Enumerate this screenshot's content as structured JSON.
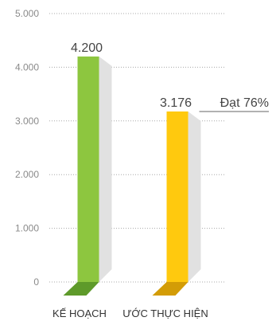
{
  "chart_data": {
    "type": "bar",
    "title": "",
    "xlabel": "",
    "ylabel": "",
    "categories": [
      "KẾ HOẠCH",
      "ƯỚC THỰC HIỆN"
    ],
    "values": [
      4200,
      3176
    ],
    "data_labels": [
      "4.200",
      "3.176"
    ],
    "y_tick_labels": [
      "0",
      "1.000",
      "2.000",
      "3.000",
      "4.000",
      "5.000"
    ],
    "y_ticks": [
      0,
      1000,
      2000,
      3000,
      4000,
      5000
    ],
    "ylim": [
      0,
      5000
    ],
    "grid": true,
    "legend": "none",
    "annotation": {
      "text": "Đạt 76%",
      "series_index": 1
    },
    "colors": {
      "bars": [
        "#8dc63f",
        "#ffc90e"
      ],
      "bar_bases": [
        "#5e9a2a",
        "#d39c06"
      ],
      "shadow": "#e1e1e1",
      "grid": "#a8a8a8",
      "annotation_line": "#666666"
    }
  }
}
